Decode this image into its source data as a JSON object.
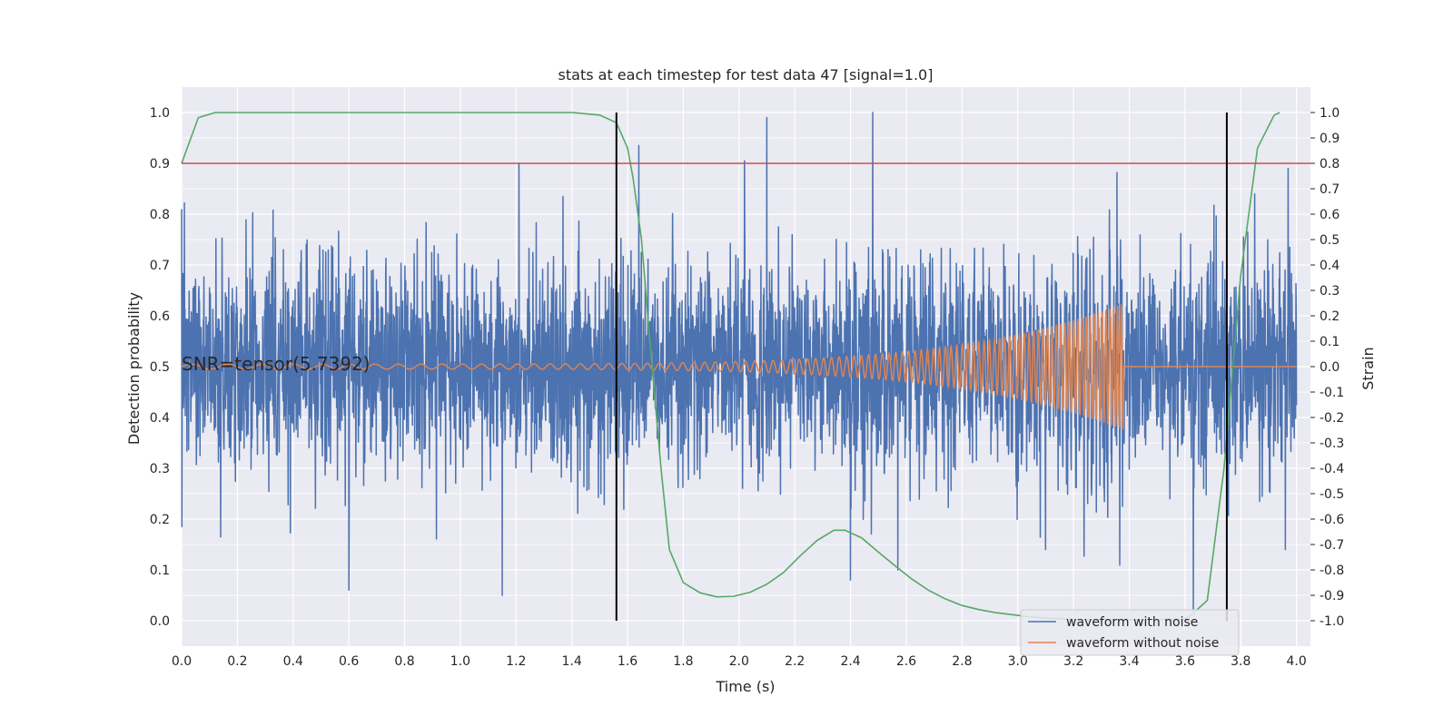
{
  "chart_data": {
    "type": "line",
    "title": "stats at each timestep for test data 47 [signal=1.0]",
    "xlabel": "Time (s)",
    "ylabel": "Detection probability",
    "ylabel_right": "Strain",
    "xlim": [
      0.0,
      4.05
    ],
    "ylim": [
      -0.05,
      1.05
    ],
    "ylim_right": [
      -1.1,
      1.1
    ],
    "x_ticks": [
      "0.0",
      "0.2",
      "0.4",
      "0.6",
      "0.8",
      "1.0",
      "1.2",
      "1.4",
      "1.6",
      "1.8",
      "2.0",
      "2.2",
      "2.4",
      "2.6",
      "2.8",
      "3.0",
      "3.2",
      "3.4",
      "3.6",
      "3.8",
      "4.0"
    ],
    "y_ticks": [
      "0.0",
      "0.1",
      "0.2",
      "0.3",
      "0.4",
      "0.5",
      "0.6",
      "0.7",
      "0.8",
      "0.9",
      "1.0"
    ],
    "y_ticks_right": [
      "-1.0",
      "-0.9",
      "-0.8",
      "-0.7",
      "-0.6",
      "-0.5",
      "-0.4",
      "-0.3",
      "-0.2",
      "-0.1",
      "0.0",
      "0.1",
      "0.2",
      "0.3",
      "0.4",
      "0.5",
      "0.6",
      "0.7",
      "0.8",
      "0.9",
      "1.0"
    ],
    "grid": true,
    "legend_position": "bottom-right",
    "annotation": "SNR=tensor(5.7392)",
    "threshold": 0.9,
    "vlines": [
      1.56,
      3.75
    ],
    "colors": {
      "background": "#eaeaf2",
      "noisy": "#4c72b0",
      "clean": "#dd8452",
      "probability": "#55a868",
      "threshold": "#c44e52",
      "vline": "#000000"
    },
    "series": [
      {
        "name": "waveform with noise",
        "axis": "right",
        "x_range": [
          0.0,
          4.0
        ],
        "sample_count": 4000,
        "std": 0.2,
        "peaks": [
          {
            "x": 0.0,
            "y": 0.62
          },
          {
            "x": 0.14,
            "y": -0.67
          },
          {
            "x": 0.6,
            "y": -0.88
          },
          {
            "x": 1.15,
            "y": -0.9
          },
          {
            "x": 1.21,
            "y": 0.8
          },
          {
            "x": 1.64,
            "y": 0.87
          },
          {
            "x": 2.02,
            "y": 0.81
          },
          {
            "x": 2.1,
            "y": 0.98
          },
          {
            "x": 2.4,
            "y": -0.84
          },
          {
            "x": 2.48,
            "y": 1.0
          },
          {
            "x": 2.57,
            "y": -0.8
          },
          {
            "x": 3.1,
            "y": -0.72
          },
          {
            "x": 3.63,
            "y": -0.96
          },
          {
            "x": 3.85,
            "y": 0.68
          },
          {
            "x": 3.96,
            "y": -0.72
          },
          {
            "x": 3.97,
            "y": 0.78
          }
        ]
      },
      {
        "name": "waveform without noise",
        "axis": "right",
        "chirp": {
          "t_start": 0.0,
          "t_merger": 3.38,
          "f_start": 7.0,
          "f_merger": 75.0,
          "amp_start": 0.01,
          "amp_merger": 0.25
        },
        "after_merger": 0.0
      },
      {
        "name": "detection probability",
        "axis": "left",
        "x": [
          0.0,
          0.06,
          0.12,
          0.2,
          0.5,
          1.0,
          1.4,
          1.5,
          1.56,
          1.6,
          1.62,
          1.65,
          1.68,
          1.72,
          1.75,
          1.8,
          1.86,
          1.92,
          1.98,
          2.04,
          2.1,
          2.16,
          2.22,
          2.28,
          2.34,
          2.38,
          2.44,
          2.5,
          2.56,
          2.62,
          2.68,
          2.74,
          2.8,
          2.86,
          2.92,
          2.98,
          3.04,
          3.1,
          3.2,
          3.3,
          3.4,
          3.5,
          3.6,
          3.62,
          3.68,
          3.74,
          3.8,
          3.86,
          3.92,
          3.94
        ],
        "y": [
          0.9,
          0.99,
          1.0,
          1.0,
          1.0,
          1.0,
          1.0,
          0.995,
          0.98,
          0.93,
          0.87,
          0.75,
          0.55,
          0.3,
          0.14,
          0.075,
          0.055,
          0.047,
          0.048,
          0.056,
          0.072,
          0.095,
          0.128,
          0.158,
          0.178,
          0.178,
          0.163,
          0.135,
          0.108,
          0.082,
          0.06,
          0.043,
          0.03,
          0.022,
          0.016,
          0.012,
          0.008,
          0.005,
          0.003,
          0.002,
          0.002,
          0.002,
          0.003,
          0.01,
          0.04,
          0.3,
          0.68,
          0.93,
          0.995,
          1.0
        ]
      }
    ]
  }
}
